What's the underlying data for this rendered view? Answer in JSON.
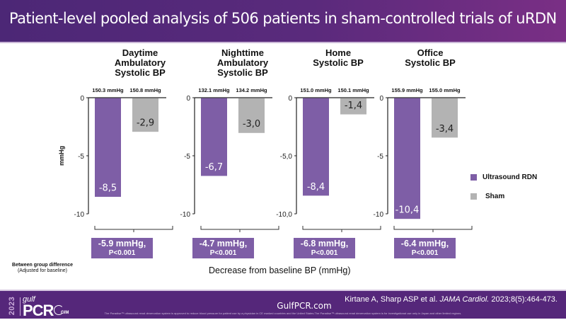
{
  "header": {
    "title": "Patient-level pooled analysis of 506 patients in sham-controlled trials of uRDN"
  },
  "colors": {
    "urdn": "#7e5ea6",
    "sham": "#b3b3b3",
    "header": "#55277a",
    "footer": "#55277a"
  },
  "chart_data": {
    "type": "bar",
    "title": "Patient-level pooled analysis of 506 patients in sham-controlled trials of uRDN",
    "ylabel": "mmHg",
    "xlabel": "Decrease from baseline BP (mmHg)",
    "legend": {
      "position": "right",
      "entries": [
        "Ultrasound RDN",
        "Sham"
      ]
    },
    "series_names": [
      "Ultrasound RDN",
      "Sham"
    ],
    "panels": [
      {
        "title": [
          "Daytime",
          "Ambulatory",
          "Systolic BP"
        ],
        "baselines": [
          "150.3 mmHg",
          "150.8 mmHg"
        ],
        "values": [
          -8.5,
          -2.9
        ],
        "labels": [
          "-8,5",
          "-2,9"
        ],
        "ylim": [
          -10,
          0
        ],
        "ticks": [
          "0",
          "-5",
          "-10"
        ],
        "difference": "-5.9 mmHg,",
        "p": "P<0.001"
      },
      {
        "title": [
          "Nighttime",
          "Ambulatory",
          "Systolic BP"
        ],
        "baselines": [
          "132.1 mmHg",
          "134.2 mmHg"
        ],
        "values": [
          -6.7,
          -3.0
        ],
        "labels": [
          "-6,7",
          "-3,0"
        ],
        "ylim": [
          -10,
          0
        ],
        "ticks": [
          "0",
          "-5",
          "-10"
        ],
        "difference": "-4.7 mmHg,",
        "p": "P<0.001"
      },
      {
        "title": [
          "Home",
          "Systolic BP"
        ],
        "baselines": [
          "151.0 mmHg",
          "150.1 mmHg"
        ],
        "values": [
          -8.4,
          -1.4
        ],
        "labels": [
          "-8,4",
          "-1,4"
        ],
        "ylim": [
          -10,
          0
        ],
        "ticks": [
          "0",
          "-5,0",
          "-10,0"
        ],
        "difference": "-6.8 mmHg,",
        "p": "P<0.001"
      },
      {
        "title": [
          "Office",
          "Systolic BP"
        ],
        "baselines": [
          "155.9 mmHg",
          "155.0 mmHg"
        ],
        "values": [
          -10.4,
          -3.4
        ],
        "labels": [
          "-10,4",
          "-3,4"
        ],
        "ylim": [
          -10,
          0
        ],
        "ticks": [
          "0",
          "-5",
          "-10"
        ],
        "difference": "-6.4 mmHg,",
        "p": "P<0.001"
      }
    ]
  },
  "legend": {
    "urdn": "Ultrasound RDN",
    "sham": "Sham"
  },
  "between_group": {
    "line1": "Between group difference",
    "line2": "(Adjusted for baseline)"
  },
  "footer": {
    "logo_year": "2023",
    "logo_gulf": "gulf",
    "logo_pcr": "PCR",
    "logo_gim": "GIM",
    "site": "GulfPCR.com",
    "citation_authors": "Kirtane A, Sharp ASP et al. ",
    "citation_journal": "JAMA Cardiol.",
    "citation_ref": " 2023;8(5):464-473.",
    "disclaimer": "The Paradise™ ultrasound renal denervation system is approved to reduce blood pressure for patient use by a physician in CE marked countries and the United States.The Paradise™ ultrasound renal denervation system is for investigational use only in Japan and other limited regions."
  }
}
